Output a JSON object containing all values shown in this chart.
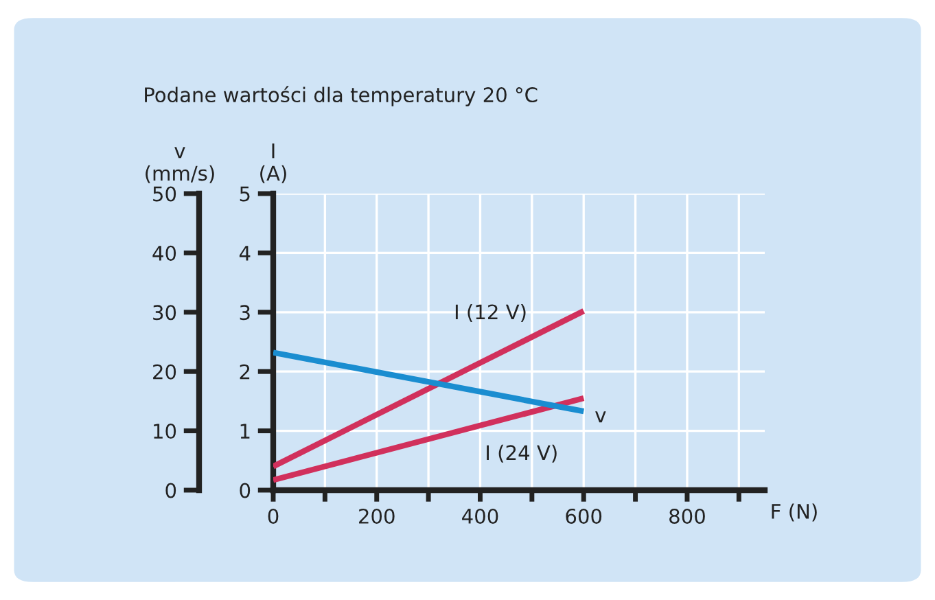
{
  "chart_data": {
    "type": "line",
    "title": "Podane wartości dla temperatury 20 °C",
    "xlabel": "F (N)",
    "ylabel": "v\n(mm/s)",
    "y2label": "I\n(A)",
    "x": [
      0,
      600
    ],
    "series": [
      {
        "name": "v",
        "color": "#1a8dd0",
        "values": [
          23.2,
          13.3
        ]
      },
      {
        "name": "I (12 V)",
        "color": "#d1305c",
        "values": [
          0.4,
          3.02
        ],
        "axis": "y2"
      },
      {
        "name": "I (24 V)",
        "color": "#d1305c",
        "values": [
          0.17,
          1.55
        ],
        "axis": "y2"
      }
    ],
    "xlim": [
      0,
      950
    ],
    "xticks": [
      0,
      {
        "value": 100,
        "label": null
      },
      200,
      {
        "value": 300,
        "label": null
      },
      400,
      {
        "value": 500,
        "label": null
      },
      600,
      {
        "value": 700,
        "label": null
      },
      800,
      {
        "value": 900,
        "label": null
      }
    ],
    "ylim": [
      0,
      50
    ],
    "yticks": [
      0,
      10,
      20,
      30,
      40,
      50
    ],
    "y2lim": [
      0,
      5
    ],
    "y2ticks": [
      0,
      1,
      2,
      3,
      4,
      5
    ],
    "grid": true,
    "marker": "none",
    "line_style": "solid"
  }
}
